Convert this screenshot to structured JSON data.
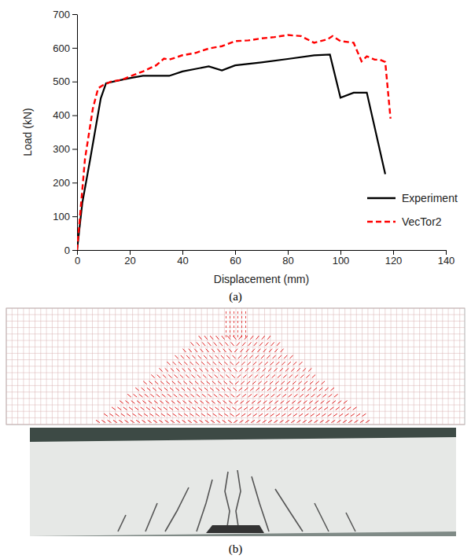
{
  "chart_data": {
    "type": "line",
    "x_label": "Displacement (mm)",
    "y_label": "Load (kN)",
    "xlim": [
      0,
      140
    ],
    "xticks": [
      0,
      20,
      40,
      60,
      80,
      100,
      120,
      140
    ],
    "ylim": [
      0,
      700
    ],
    "yticks": [
      0,
      100,
      200,
      300,
      400,
      500,
      600,
      700
    ],
    "grid": false,
    "legend": "lower right",
    "series": [
      {
        "name": "Experiment",
        "color": "#000000",
        "line_style": "solid",
        "x": [
          0,
          2,
          5,
          9,
          11,
          15,
          20,
          25,
          35,
          40,
          50,
          55,
          60,
          70,
          80,
          90,
          96,
          100,
          105,
          110,
          117
        ],
        "values": [
          0,
          140,
          270,
          450,
          495,
          502,
          510,
          517,
          517,
          530,
          545,
          533,
          548,
          557,
          567,
          578,
          580,
          452,
          467,
          467,
          225
        ]
      },
      {
        "name": "VecTor2",
        "color": "#ff0000",
        "line_style": "dashed",
        "x": [
          0,
          3,
          6,
          8,
          10,
          13,
          17,
          20,
          25,
          30,
          33,
          35,
          40,
          45,
          50,
          55,
          60,
          65,
          70,
          75,
          80,
          85,
          90,
          95,
          97,
          100,
          105,
          108,
          110,
          113,
          115,
          117,
          119
        ],
        "values": [
          0,
          270,
          420,
          480,
          490,
          500,
          505,
          515,
          530,
          548,
          568,
          565,
          578,
          585,
          598,
          605,
          620,
          622,
          628,
          632,
          638,
          635,
          615,
          625,
          635,
          620,
          615,
          560,
          575,
          565,
          565,
          558,
          390
        ]
      }
    ]
  },
  "figure": {
    "captions": [
      "(a)",
      "(b)"
    ]
  }
}
